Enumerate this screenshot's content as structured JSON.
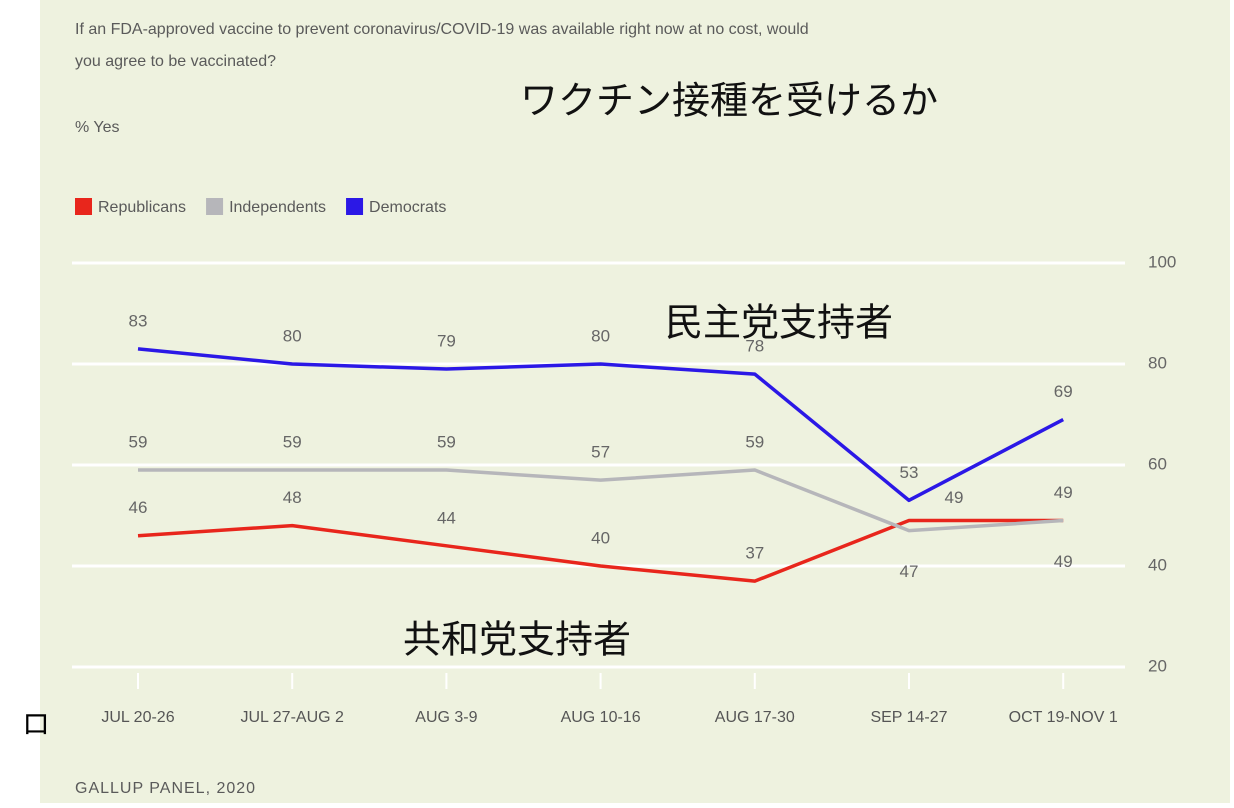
{
  "chart_data": {
    "type": "line",
    "title": [
      "If an FDA-approved vaccine to prevent coronavirus/COVID-19 was available right now at no cost, would",
      "you agree to be vaccinated?"
    ],
    "subtitle": "% Yes",
    "source": "GALLUP PANEL, 2020",
    "annotations": [
      "ワクチン接種を受けるか",
      "民主党支持者",
      "共和党支持者",
      "ロ"
    ],
    "categories": [
      "JUL 20-26",
      "JUL 27-AUG 2",
      "AUG 3-9",
      "AUG 10-16",
      "AUG 17-30",
      "SEP 14-27",
      "OCT 19-NOV 1"
    ],
    "series": [
      {
        "name": "Republicans",
        "color": "#e8261c",
        "values": [
          46,
          48,
          44,
          40,
          37,
          49,
          49
        ]
      },
      {
        "name": "Independents",
        "color": "#b6b6ba",
        "values": [
          59,
          59,
          59,
          57,
          59,
          47,
          49
        ]
      },
      {
        "name": "Democrats",
        "color": "#2b18e6",
        "values": [
          83,
          80,
          79,
          80,
          78,
          53,
          69
        ]
      }
    ],
    "ylim": [
      20,
      100
    ],
    "yticks": [
      20,
      40,
      60,
      80,
      100
    ],
    "grid": true,
    "legend": "top-left"
  }
}
